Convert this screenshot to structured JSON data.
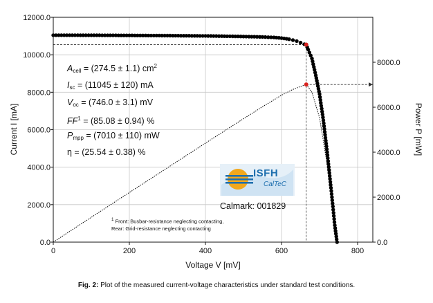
{
  "chart_data": {
    "type": "line",
    "xlabel": "Voltage V [mV]",
    "ylabel_left": "Current I [mA]",
    "ylabel_right": "Power P [mW]",
    "xlim": [
      0,
      840
    ],
    "ylim_left": [
      0,
      12000
    ],
    "ylim_right": [
      0,
      10000
    ],
    "x_ticks": [
      "0",
      "200",
      "400",
      "600",
      "800"
    ],
    "y_left_ticks": [
      "0.0",
      "2000.0",
      "4000.0",
      "6000.0",
      "8000.0",
      "10000.0",
      "12000.0"
    ],
    "y_right_ticks": [
      "0.0",
      "2000.0",
      "4000.0",
      "6000.0",
      "8000.0"
    ],
    "grid": true,
    "series": [
      {
        "name": "I-V",
        "marker": "dot",
        "color": "#000000",
        "x": [
          0,
          50,
          100,
          150,
          200,
          250,
          300,
          350,
          400,
          450,
          500,
          550,
          580,
          600,
          620,
          630,
          640,
          650,
          660,
          665,
          670,
          680,
          690,
          700,
          710,
          720,
          730,
          735,
          740,
          746
        ],
        "y": [
          11045,
          11043,
          11040,
          11036,
          11032,
          11027,
          11021,
          11014,
          11005,
          10992,
          10975,
          10950,
          10925,
          10890,
          10830,
          10780,
          10730,
          10650,
          10560,
          10540,
          10280,
          9800,
          8900,
          7900,
          6500,
          4800,
          2900,
          1900,
          900,
          0
        ]
      },
      {
        "name": "P-V",
        "marker": "none",
        "style": "dotted",
        "color": "#000000",
        "x": [
          0,
          100,
          200,
          300,
          400,
          500,
          550,
          600,
          630,
          650,
          665,
          680,
          700,
          720,
          735,
          746
        ],
        "y": [
          0,
          1104,
          2206,
          3306,
          4402,
          5488,
          6023,
          6534,
          6791,
          6923,
          7010,
          6664,
          5530,
          3456,
          1397,
          0
        ]
      }
    ],
    "mpp": {
      "voltage": 665,
      "current": 10540,
      "power": 7010,
      "color": "#d8231f"
    },
    "annotations": {
      "params": {
        "area": {
          "label": "A",
          "sub": "cell",
          "text": " = (274.5 ± 1.1) cm",
          "sup": "2"
        },
        "isc": {
          "label": "I",
          "sub": "sc",
          "text": " = (11045 ± 120) mA"
        },
        "voc": {
          "label": "V",
          "sub": "oc",
          "text": " = (746.0 ± 3.1) mV"
        },
        "ff": {
          "label": "FF",
          "sup": "1",
          "text": " = (85.08 ± 0.94) %"
        },
        "pmpp": {
          "label": "P",
          "sub": "mpp",
          "text": " = (7010 ± 110) mW"
        },
        "eta": {
          "text": "η = (25.54 ± 0.38) %"
        }
      },
      "calmark": "Calmark: 001829",
      "footnote_sup": "1",
      "footnote_line1": " Front: Busbar-resistance neglecting contacting,",
      "footnote_line2": "Rear: Grid-resistance neglecting contacting"
    },
    "logo": {
      "name": "ISFH",
      "sub": "CalTeC",
      "colors": [
        "#f2a81d",
        "#1e6fae",
        "#cfe3f3"
      ]
    }
  },
  "caption": {
    "label": "Fig. 2:",
    "text": " Plot of the measured current-voltage characteristics under standard test conditions."
  }
}
